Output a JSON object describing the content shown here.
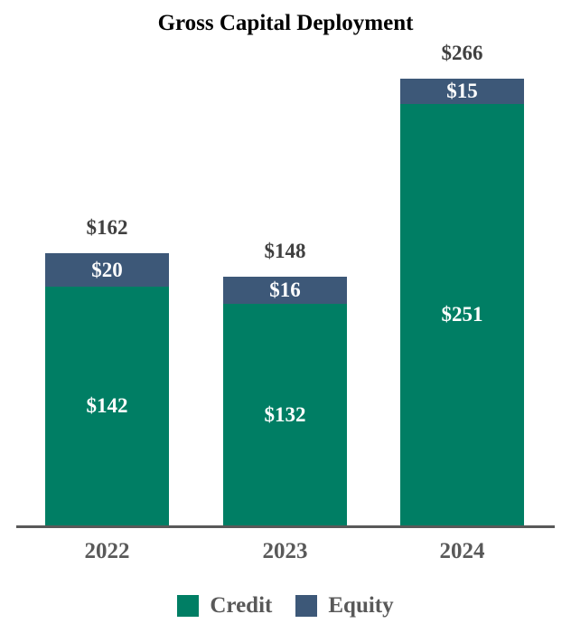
{
  "title": "Gross Capital Deployment",
  "colors": {
    "credit": "#007E64",
    "equity": "#3D5878",
    "segment_label": "#FFFFFF",
    "total_label": "#404040",
    "axis_text": "#595959",
    "axis_line": "#595959",
    "title_text": "#000000",
    "background": "#FFFFFF"
  },
  "legend": {
    "position": "bottom-center",
    "items": [
      {
        "label": "Credit",
        "color": "#007E64"
      },
      {
        "label": "Equity",
        "color": "#3D5878"
      }
    ]
  },
  "chart_data": {
    "type": "bar",
    "stacked": true,
    "title": "Gross Capital Deployment",
    "xlabel": "",
    "ylabel": "",
    "ylim": [
      0,
      280
    ],
    "grid": false,
    "y_axis_visible": false,
    "categories": [
      "2022",
      "2023",
      "2024"
    ],
    "series": [
      {
        "name": "Credit",
        "color": "#007E64",
        "values": [
          142,
          132,
          251
        ],
        "labels": [
          "$142",
          "$132",
          "$251"
        ]
      },
      {
        "name": "Equity",
        "color": "#3D5878",
        "values": [
          20,
          16,
          15
        ],
        "labels": [
          "$20",
          "$16",
          "$15"
        ]
      }
    ],
    "totals": [
      162,
      148,
      266
    ],
    "total_labels": [
      "$162",
      "$148",
      "$266"
    ],
    "value_prefix": "$",
    "value_unit": "millions (implied)"
  }
}
